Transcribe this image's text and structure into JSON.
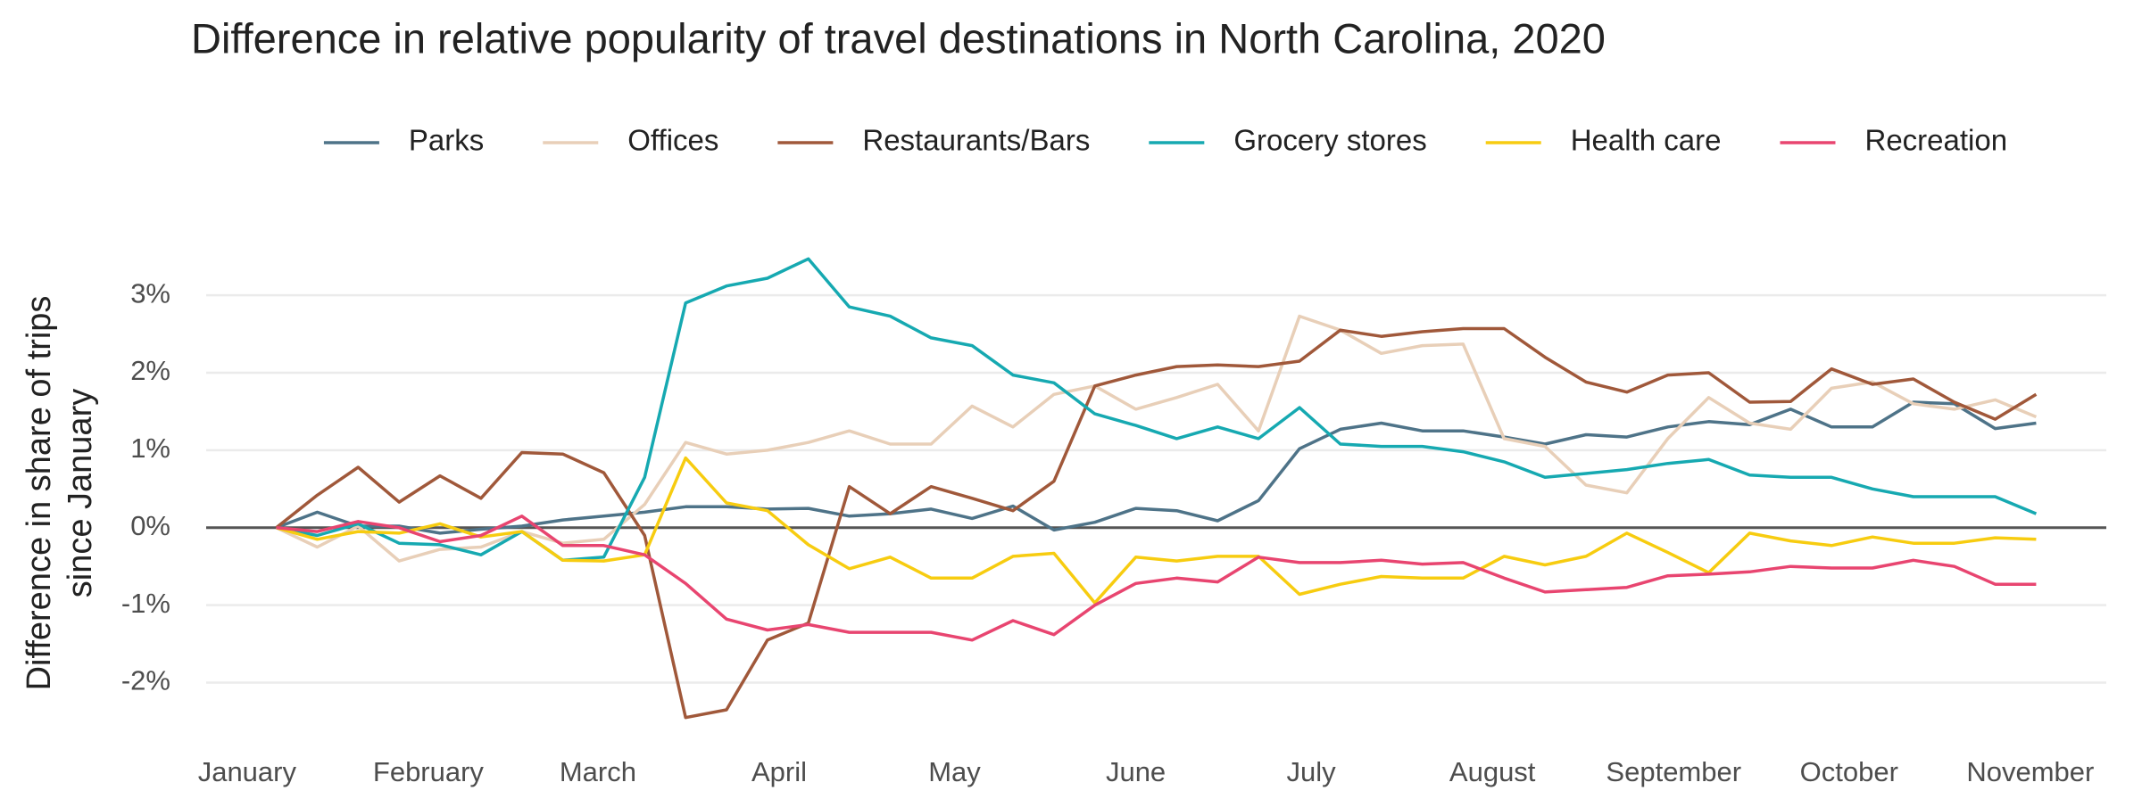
{
  "chart_data": {
    "type": "line",
    "title": "Difference in relative popularity of travel destinations in North Carolina, 2020",
    "ylabel": [
      "Difference in share of trips",
      "since January"
    ],
    "x": [
      5,
      12,
      19,
      26,
      33,
      40,
      47,
      54,
      61,
      68,
      75,
      82,
      89,
      96,
      103,
      110,
      117,
      124,
      131,
      138,
      145,
      152,
      159,
      166,
      173,
      180,
      187,
      194,
      201,
      208,
      215,
      222,
      229,
      236,
      243,
      250,
      257,
      264,
      271,
      278,
      285,
      292,
      299,
      306
    ],
    "xlim": [
      -7,
      318
    ],
    "xticks": [
      {
        "value": 0,
        "label": "January"
      },
      {
        "value": 31,
        "label": "February"
      },
      {
        "value": 60,
        "label": "March"
      },
      {
        "value": 91,
        "label": "April"
      },
      {
        "value": 121,
        "label": "May"
      },
      {
        "value": 152,
        "label": "June"
      },
      {
        "value": 182,
        "label": "July"
      },
      {
        "value": 213,
        "label": "August"
      },
      {
        "value": 244,
        "label": "September"
      },
      {
        "value": 274,
        "label": "October"
      },
      {
        "value": 305,
        "label": "November"
      }
    ],
    "ylim": [
      -2.5,
      3.6
    ],
    "yticks": [
      {
        "value": -2,
        "label": "-2%"
      },
      {
        "value": -1,
        "label": "-1%"
      },
      {
        "value": 0,
        "label": "0%"
      },
      {
        "value": 1,
        "label": "1%"
      },
      {
        "value": 2,
        "label": "2%"
      },
      {
        "value": 3,
        "label": "3%"
      }
    ],
    "grid": true,
    "legend": "top",
    "series": [
      {
        "name": "Parks",
        "color": "#4e7388",
        "values": [
          0,
          0.2,
          0.02,
          0.02,
          -0.07,
          -0.02,
          0.02,
          0.1,
          0.15,
          0.2,
          0.27,
          0.27,
          0.24,
          0.25,
          0.15,
          0.18,
          0.24,
          0.12,
          0.28,
          -0.03,
          0.07,
          0.25,
          0.22,
          0.09,
          0.35,
          1.02,
          1.27,
          1.35,
          1.25,
          1.25,
          1.17,
          1.08,
          1.2,
          1.17,
          1.3,
          1.37,
          1.33,
          1.53,
          1.3,
          1.3,
          1.62,
          1.6,
          1.28,
          1.35
        ]
      },
      {
        "name": "Offices",
        "color": "#e8cfb8",
        "values": [
          0,
          -0.25,
          0.02,
          -0.43,
          -0.28,
          -0.25,
          -0.05,
          -0.2,
          -0.15,
          0.3,
          1.1,
          0.95,
          1.0,
          1.1,
          1.25,
          1.08,
          1.08,
          1.57,
          1.3,
          1.72,
          1.83,
          1.53,
          1.68,
          1.85,
          1.25,
          2.73,
          2.55,
          2.25,
          2.35,
          2.37,
          1.15,
          1.05,
          0.55,
          0.45,
          1.15,
          1.68,
          1.35,
          1.27,
          1.8,
          1.88,
          1.6,
          1.53,
          1.65,
          1.43
        ]
      },
      {
        "name": "Restaurants/Bars",
        "color": "#a0583a",
        "values": [
          0,
          0.42,
          0.78,
          0.33,
          0.67,
          0.38,
          0.97,
          0.95,
          0.71,
          -0.1,
          -2.45,
          -2.35,
          -1.45,
          -1.23,
          0.53,
          0.18,
          0.53,
          0.38,
          0.22,
          0.6,
          1.83,
          1.97,
          2.08,
          2.1,
          2.08,
          2.15,
          2.55,
          2.47,
          2.53,
          2.57,
          2.57,
          2.2,
          1.88,
          1.75,
          1.97,
          2.0,
          1.62,
          1.63,
          2.05,
          1.85,
          1.92,
          1.62,
          1.4,
          1.72
        ]
      },
      {
        "name": "Grocery stores",
        "color": "#16a9b1",
        "values": [
          0,
          -0.1,
          0.05,
          -0.2,
          -0.22,
          -0.35,
          -0.05,
          -0.42,
          -0.38,
          0.65,
          2.9,
          3.12,
          3.22,
          3.47,
          2.85,
          2.73,
          2.45,
          2.35,
          1.97,
          1.87,
          1.47,
          1.32,
          1.15,
          1.3,
          1.15,
          1.55,
          1.08,
          1.05,
          1.05,
          0.98,
          0.85,
          0.65,
          0.7,
          0.75,
          0.83,
          0.88,
          0.68,
          0.65,
          0.65,
          0.5,
          0.4,
          0.4,
          0.4,
          0.18
        ]
      },
      {
        "name": "Health care",
        "color": "#f7cc10",
        "values": [
          0,
          -0.15,
          -0.05,
          -0.07,
          0.05,
          -0.12,
          -0.05,
          -0.42,
          -0.43,
          -0.35,
          0.9,
          0.32,
          0.22,
          -0.22,
          -0.53,
          -0.38,
          -0.65,
          -0.65,
          -0.37,
          -0.33,
          -0.97,
          -0.38,
          -0.43,
          -0.37,
          -0.37,
          -0.86,
          -0.73,
          -0.63,
          -0.65,
          -0.65,
          -0.37,
          -0.48,
          -0.37,
          -0.07,
          -0.32,
          -0.58,
          -0.07,
          -0.17,
          -0.23,
          -0.12,
          -0.2,
          -0.2,
          -0.13,
          -0.15
        ]
      },
      {
        "name": "Recreation",
        "color": "#e84570",
        "values": [
          0,
          -0.05,
          0.08,
          0.0,
          -0.18,
          -0.1,
          0.15,
          -0.23,
          -0.23,
          -0.35,
          -0.72,
          -1.18,
          -1.32,
          -1.25,
          -1.35,
          -1.35,
          -1.35,
          -1.45,
          -1.2,
          -1.38,
          -1.0,
          -0.72,
          -0.65,
          -0.7,
          -0.38,
          -0.45,
          -0.45,
          -0.42,
          -0.47,
          -0.45,
          -0.65,
          -0.83,
          -0.8,
          -0.77,
          -0.62,
          -0.6,
          -0.57,
          -0.5,
          -0.52,
          -0.52,
          -0.42,
          -0.5,
          -0.73,
          -0.73
        ]
      }
    ]
  }
}
